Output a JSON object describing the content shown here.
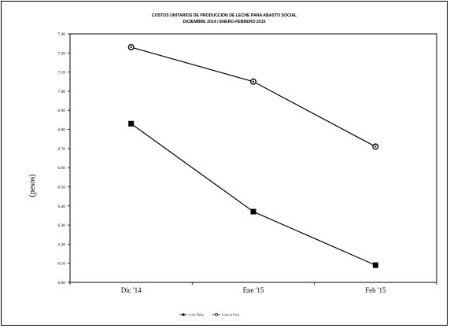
{
  "chart_data": {
    "type": "line",
    "title": "COSTOS UNITARIOS DE PRODUCCION DE LECHE PARA ABASTO SOCIAL",
    "subtitle": "DICIEMBRE 2014 / ENERO-FEBRERO 2015",
    "xlabel": "",
    "ylabel": "(pesos)",
    "categories": [
      "Dic '14",
      "Ene '15",
      "Feb '15"
    ],
    "ylim": [
      6.0,
      7.3
    ],
    "yticks": [
      "6.00",
      "6.10",
      "6.20",
      "6.30",
      "6.40",
      "6.50",
      "6.60",
      "6.70",
      "6.80",
      "6.90",
      "7.00",
      "7.10",
      "7.20",
      "7.30"
    ],
    "grid": false,
    "legend_position": "bottom",
    "series": [
      {
        "name": "Leche Fluida",
        "values": [
          6.83,
          6.37,
          6.09
        ],
        "marker": "square",
        "color": "#000000"
      },
      {
        "name": "Leche en Polvo",
        "values": [
          7.23,
          7.05,
          6.71
        ],
        "marker": "circle",
        "color": "#000000"
      }
    ]
  }
}
